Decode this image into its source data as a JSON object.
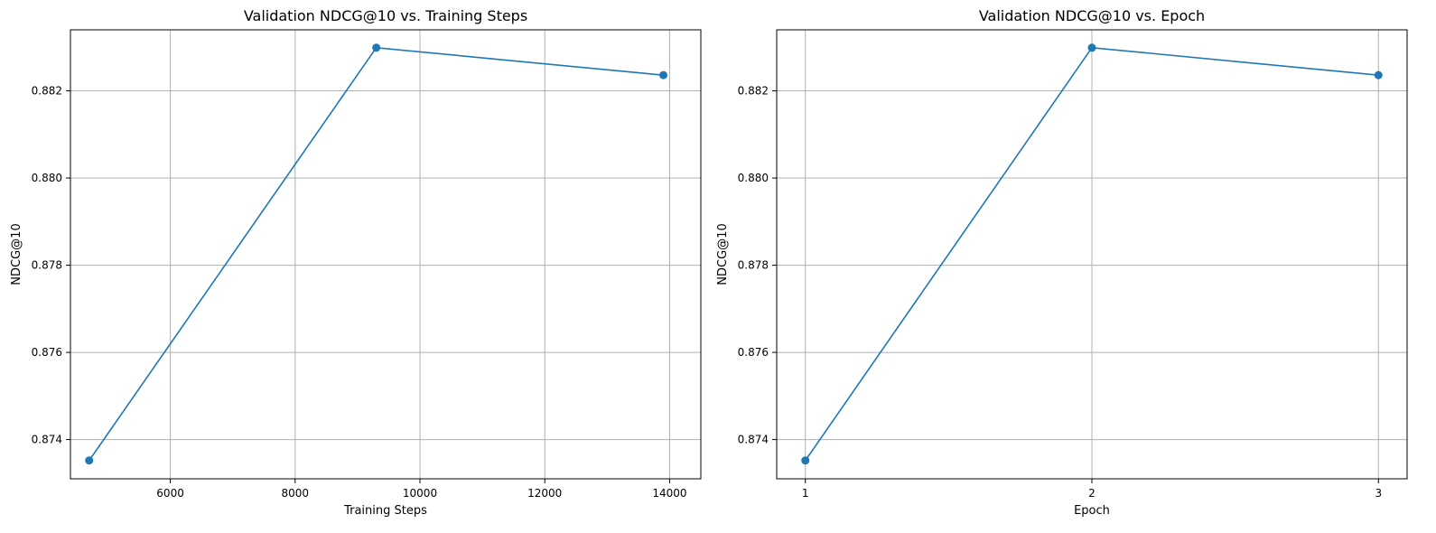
{
  "colors": {
    "series": "#1f77b4"
  },
  "chart_data": [
    {
      "type": "line",
      "title": "Validation NDCG@10 vs. Training Steps",
      "xlabel": "Training Steps",
      "ylabel": "NDCG@10",
      "x": [
        4700,
        9300,
        13900
      ],
      "series": [
        {
          "values": [
            0.87352,
            0.88299,
            0.88236
          ]
        }
      ],
      "xlim": [
        4400,
        14500
      ],
      "ylim": [
        0.8731,
        0.8834
      ],
      "xticks": [
        6000,
        8000,
        10000,
        12000,
        14000
      ],
      "xtick_labels": [
        "6000",
        "8000",
        "10000",
        "12000",
        "14000"
      ],
      "yticks": [
        0.874,
        0.876,
        0.878,
        0.88,
        0.882
      ],
      "ytick_labels": [
        "0.874",
        "0.876",
        "0.878",
        "0.880",
        "0.882"
      ],
      "grid": true,
      "markers": true
    },
    {
      "type": "line",
      "title": "Validation NDCG@10 vs. Epoch",
      "xlabel": "Epoch",
      "ylabel": "NDCG@10",
      "x": [
        1,
        2,
        3
      ],
      "series": [
        {
          "values": [
            0.87352,
            0.88299,
            0.88236
          ]
        }
      ],
      "xlim": [
        0.9,
        3.1
      ],
      "ylim": [
        0.8731,
        0.8834
      ],
      "xticks": [
        1,
        2,
        3
      ],
      "xtick_labels": [
        "1",
        "2",
        "3"
      ],
      "yticks": [
        0.874,
        0.876,
        0.878,
        0.88,
        0.882
      ],
      "ytick_labels": [
        "0.874",
        "0.876",
        "0.878",
        "0.880",
        "0.882"
      ],
      "grid": true,
      "markers": true
    }
  ]
}
